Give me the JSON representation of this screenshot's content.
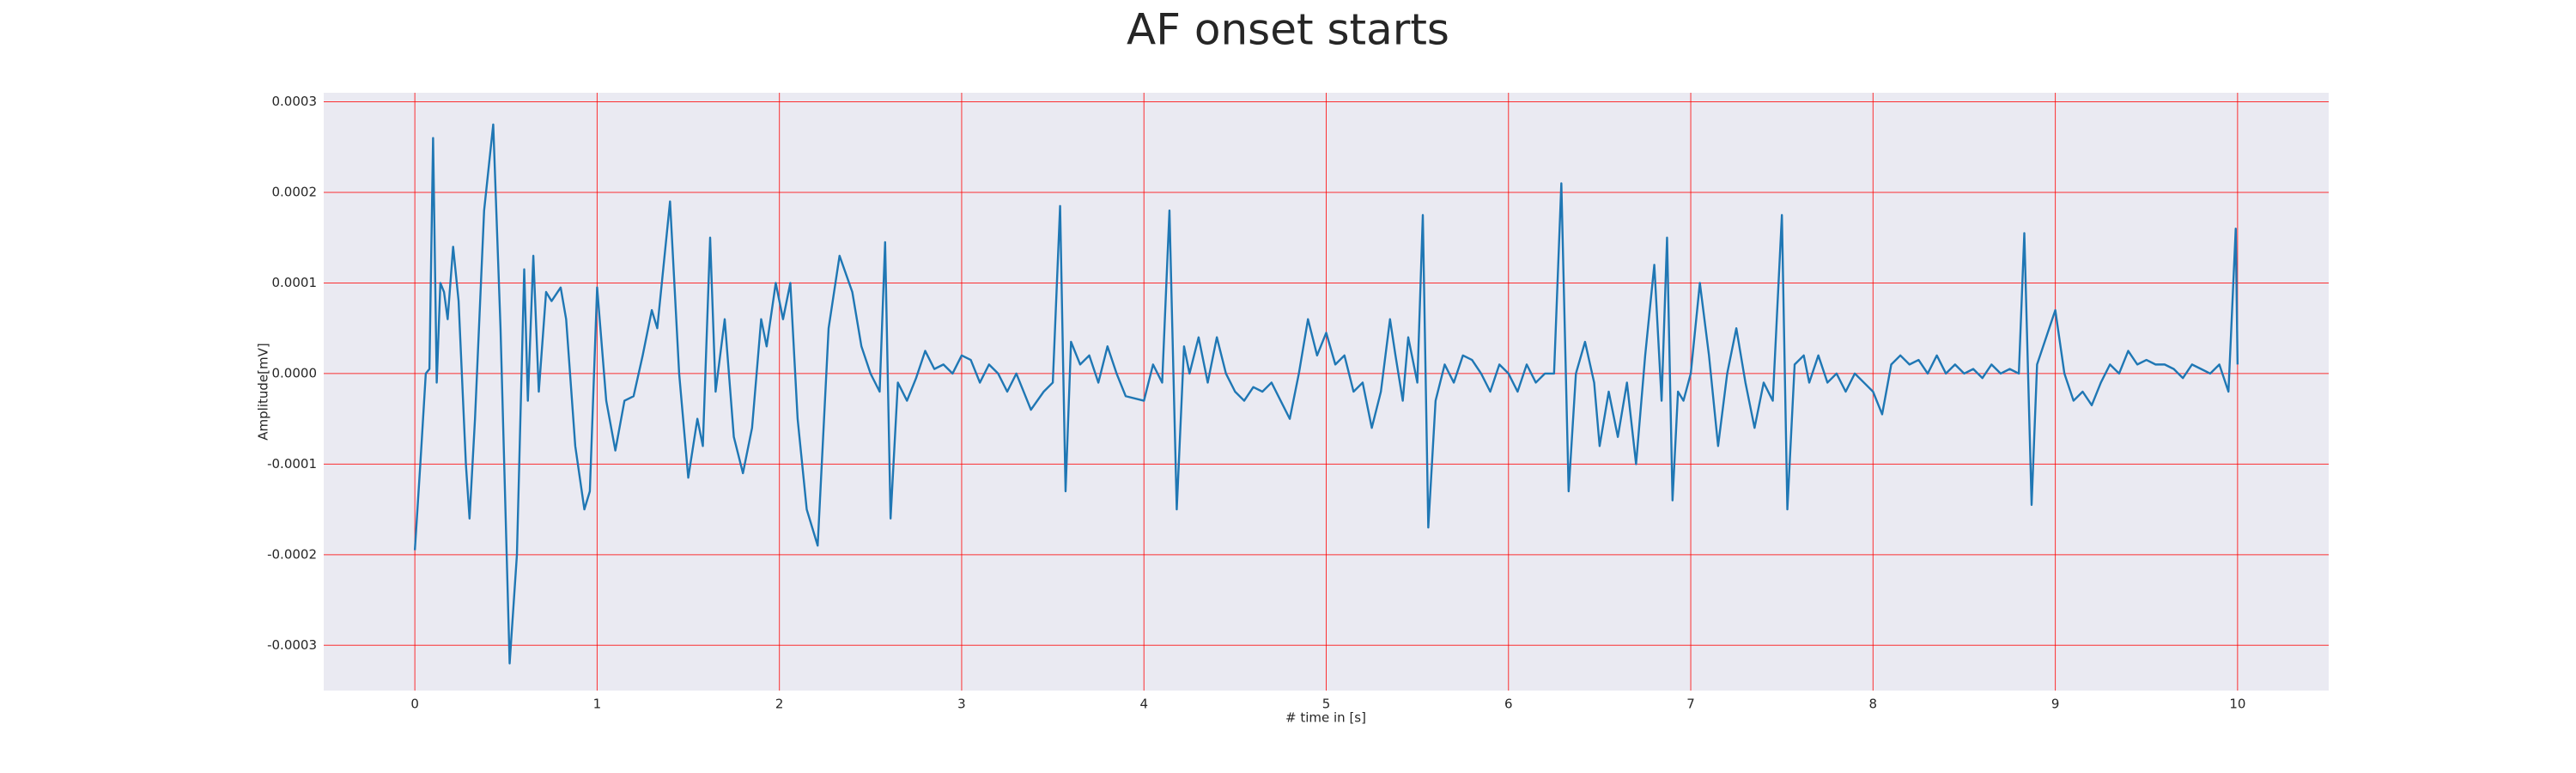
{
  "chart_data": {
    "type": "line",
    "title": "AF onset starts",
    "xlabel": "# time in [s]",
    "ylabel": "Amplitude[mV]",
    "grid": true,
    "grid_color": "#ff0000",
    "background": "#eaeaf2",
    "xlim": [
      -0.5,
      10.5
    ],
    "ylim": [
      -0.00035,
      0.00031
    ],
    "xticks": [
      0,
      1,
      2,
      3,
      4,
      5,
      6,
      7,
      8,
      9,
      10
    ],
    "yticks": [
      {
        "value": -0.0003,
        "label": "-0.0003"
      },
      {
        "value": -0.0002,
        "label": "-0.0002"
      },
      {
        "value": -0.0001,
        "label": "-0.0001"
      },
      {
        "value": 0,
        "label": "0.0000"
      },
      {
        "value": 0.0001,
        "label": "0.0001"
      },
      {
        "value": 0.0002,
        "label": "0.0002"
      },
      {
        "value": 0.0003,
        "label": "0.0003"
      }
    ],
    "series": [
      {
        "color": "#1f77b4",
        "x": [
          0,
          0.03,
          0.06,
          0.08,
          0.1,
          0.12,
          0.14,
          0.16,
          0.18,
          0.21,
          0.24,
          0.28,
          0.3,
          0.33,
          0.38,
          0.43,
          0.47,
          0.52,
          0.56,
          0.6,
          0.62,
          0.65,
          0.68,
          0.72,
          0.75,
          0.8,
          0.83,
          0.88,
          0.93,
          0.96,
          1,
          1.05,
          1.1,
          1.15,
          1.2,
          1.25,
          1.3,
          1.33,
          1.4,
          1.45,
          1.5,
          1.55,
          1.58,
          1.62,
          1.65,
          1.7,
          1.75,
          1.8,
          1.85,
          1.9,
          1.93,
          1.98,
          2.02,
          2.06,
          2.1,
          2.15,
          2.21,
          2.27,
          2.33,
          2.4,
          2.45,
          2.5,
          2.55,
          2.58,
          2.61,
          2.65,
          2.7,
          2.75,
          2.8,
          2.85,
          2.9,
          2.95,
          3,
          3.05,
          3.1,
          3.15,
          3.2,
          3.25,
          3.3,
          3.38,
          3.45,
          3.5,
          3.54,
          3.57,
          3.6,
          3.65,
          3.7,
          3.75,
          3.8,
          3.85,
          3.9,
          4,
          4.05,
          4.1,
          4.14,
          4.18,
          4.22,
          4.25,
          4.3,
          4.35,
          4.4,
          4.45,
          4.5,
          4.55,
          4.6,
          4.65,
          4.7,
          4.75,
          4.8,
          4.85,
          4.9,
          4.95,
          5,
          5.05,
          5.1,
          5.15,
          5.2,
          5.25,
          5.3,
          5.35,
          5.38,
          5.42,
          5.45,
          5.5,
          5.53,
          5.56,
          5.6,
          5.65,
          5.7,
          5.75,
          5.8,
          5.85,
          5.9,
          5.95,
          6,
          6.05,
          6.1,
          6.15,
          6.2,
          6.25,
          6.29,
          6.33,
          6.37,
          6.42,
          6.47,
          6.5,
          6.55,
          6.6,
          6.65,
          6.7,
          6.75,
          6.8,
          6.84,
          6.87,
          6.9,
          6.93,
          6.96,
          7,
          7.05,
          7.1,
          7.15,
          7.2,
          7.25,
          7.3,
          7.35,
          7.4,
          7.45,
          7.5,
          7.53,
          7.57,
          7.62,
          7.65,
          7.7,
          7.75,
          7.8,
          7.85,
          7.9,
          7.95,
          8,
          8.05,
          8.1,
          8.15,
          8.2,
          8.25,
          8.3,
          8.35,
          8.4,
          8.45,
          8.5,
          8.55,
          8.6,
          8.65,
          8.7,
          8.75,
          8.8,
          8.83,
          8.87,
          8.9,
          8.95,
          9,
          9.05,
          9.1,
          9.15,
          9.2,
          9.25,
          9.3,
          9.35,
          9.4,
          9.45,
          9.5,
          9.55,
          9.6,
          9.65,
          9.7,
          9.75,
          9.8,
          9.85,
          9.9,
          9.95,
          9.99,
          10
        ],
        "values": [
          -0.000195,
          -0.0001,
          0,
          5e-06,
          0.00026,
          -1e-05,
          0.0001,
          9e-05,
          6e-05,
          0.00014,
          8e-05,
          -0.0001,
          -0.00016,
          -5e-05,
          0.00018,
          0.000275,
          5e-05,
          -0.00032,
          -0.0002,
          0.000115,
          -3e-05,
          0.00013,
          -2e-05,
          9e-05,
          8e-05,
          9.5e-05,
          6e-05,
          -8e-05,
          -0.00015,
          -0.00013,
          9.5e-05,
          -3e-05,
          -8.5e-05,
          -3e-05,
          -2.5e-05,
          2e-05,
          7e-05,
          5e-05,
          0.00019,
          0,
          -0.000115,
          -5e-05,
          -8e-05,
          0.00015,
          -2e-05,
          6e-05,
          -7e-05,
          -0.00011,
          -6e-05,
          6e-05,
          3e-05,
          0.0001,
          6e-05,
          0.0001,
          -5e-05,
          -0.00015,
          -0.00019,
          5e-05,
          0.00013,
          9e-05,
          3e-05,
          0,
          -2e-05,
          0.000145,
          -0.00016,
          -1e-05,
          -3e-05,
          -5e-06,
          2.5e-05,
          5e-06,
          1e-05,
          0,
          2e-05,
          1.5e-05,
          -1e-05,
          1e-05,
          0,
          -2e-05,
          0,
          -4e-05,
          -2e-05,
          -1e-05,
          0.000185,
          -0.00013,
          3.5e-05,
          1e-05,
          2e-05,
          -1e-05,
          3e-05,
          0,
          -2.5e-05,
          -3e-05,
          1e-05,
          -1e-05,
          0.00018,
          -0.00015,
          3e-05,
          0,
          4e-05,
          -1e-05,
          4e-05,
          0,
          -2e-05,
          -3e-05,
          -1.5e-05,
          -2e-05,
          -1e-05,
          -3e-05,
          -5e-05,
          0,
          6e-05,
          2e-05,
          4.5e-05,
          1e-05,
          2e-05,
          -2e-05,
          -1e-05,
          -6e-05,
          -2e-05,
          6e-05,
          2e-05,
          -3e-05,
          4e-05,
          -1e-05,
          0.000175,
          -0.00017,
          -3e-05,
          1e-05,
          -1e-05,
          2e-05,
          1.5e-05,
          0,
          -2e-05,
          1e-05,
          0,
          -2e-05,
          1e-05,
          -1e-05,
          0,
          0,
          0.00021,
          -0.00013,
          0,
          3.5e-05,
          -1e-05,
          -8e-05,
          -2e-05,
          -7e-05,
          -1e-05,
          -0.0001,
          2e-05,
          0.00012,
          -3e-05,
          0.00015,
          -0.00014,
          -2e-05,
          -3e-05,
          0,
          0.0001,
          2e-05,
          -8e-05,
          0,
          5e-05,
          -1e-05,
          -6e-05,
          -1e-05,
          -3e-05,
          0.000175,
          -0.00015,
          1e-05,
          2e-05,
          -1e-05,
          2e-05,
          -1e-05,
          0,
          -2e-05,
          0,
          -1e-05,
          -2e-05,
          -4.5e-05,
          1e-05,
          2e-05,
          1e-05,
          1.5e-05,
          0,
          2e-05,
          0,
          1e-05,
          0,
          5e-06,
          -5e-06,
          1e-05,
          0,
          5e-06,
          0,
          0.000155,
          -0.000145,
          1e-05,
          4e-05,
          7e-05,
          0,
          -3e-05,
          -2e-05,
          -3.5e-05,
          -1e-05,
          1e-05,
          0,
          2.5e-05,
          1e-05,
          1.5e-05,
          1e-05,
          1e-05,
          5e-06,
          -5e-06,
          1e-05,
          5e-06,
          0,
          1e-05,
          -2e-05,
          0.00016,
          1e-05
        ]
      }
    ]
  }
}
